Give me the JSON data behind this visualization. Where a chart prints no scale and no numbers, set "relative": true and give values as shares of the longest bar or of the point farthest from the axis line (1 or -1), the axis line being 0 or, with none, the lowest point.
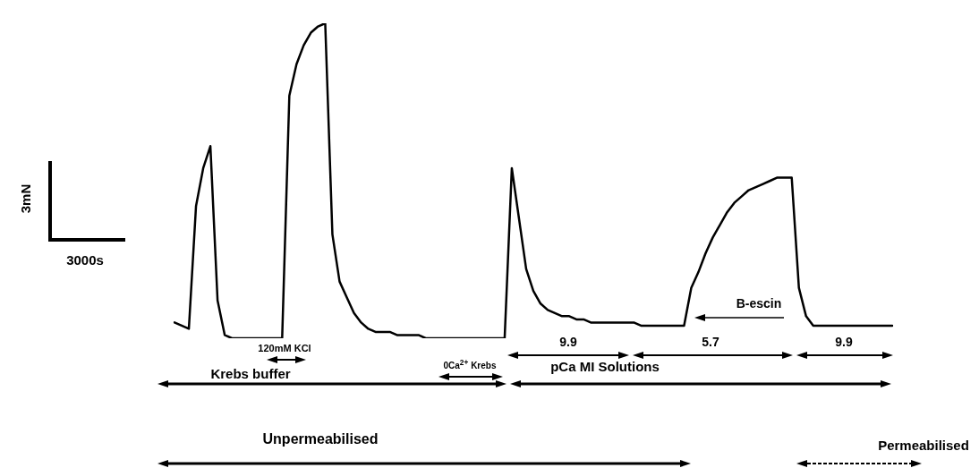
{
  "chart_data": {
    "type": "line",
    "relative": true,
    "marker": "none",
    "grid": false,
    "legend": false,
    "categories": [
      null,
      null,
      null,
      null,
      null,
      null,
      null,
      null,
      null,
      null,
      null,
      null,
      null,
      null,
      null,
      null,
      null,
      null,
      null,
      null,
      null,
      null,
      null,
      null,
      null,
      null,
      null,
      null,
      null,
      null,
      null,
      null,
      null,
      null,
      null,
      null,
      null,
      null,
      null,
      null,
      null,
      null,
      null,
      null,
      null,
      null,
      null,
      null,
      null,
      null,
      null,
      null,
      null,
      null,
      null,
      null,
      null,
      null,
      null,
      null,
      null,
      null,
      null,
      null,
      null,
      null,
      null,
      null,
      null,
      null,
      null,
      null,
      null,
      null,
      null,
      null,
      null,
      null,
      null,
      null,
      null,
      null,
      null,
      null,
      null,
      null,
      null,
      null,
      null,
      null,
      null,
      null,
      null,
      null,
      null,
      null,
      null,
      null,
      null,
      null,
      null
    ],
    "series": [
      {
        "color": "#000000",
        "values": [
          0.05,
          0.04,
          0.03,
          0.42,
          0.54,
          0.61,
          0.12,
          0.01,
          0,
          0,
          0,
          0,
          0,
          0,
          0,
          0,
          0.77,
          0.87,
          0.93,
          0.97,
          0.99,
          1,
          0.33,
          0.18,
          0.13,
          0.08,
          0.05,
          0.03,
          0.02,
          0.02,
          0.02,
          0.01,
          0.01,
          0.01,
          0.01,
          0,
          0,
          0,
          0,
          0,
          0,
          0,
          0,
          0,
          0,
          0,
          0,
          0.54,
          0.38,
          0.22,
          0.15,
          0.11,
          0.09,
          0.08,
          0.07,
          0.07,
          0.06,
          0.06,
          0.05,
          0.05,
          0.05,
          0.05,
          0.05,
          0.05,
          0.05,
          0.04,
          0.04,
          0.04,
          0.04,
          0.04,
          0.04,
          0.04,
          0.16,
          0.21,
          0.27,
          0.32,
          0.36,
          0.4,
          0.43,
          0.45,
          0.47,
          0.48,
          0.49,
          0.5,
          0.51,
          0.51,
          0.51,
          0.16,
          0.07,
          0.04,
          0.04,
          0.04,
          0.04,
          0.04,
          0.04,
          0.04,
          0.04,
          0.04,
          0.04,
          0.04,
          0.04
        ]
      }
    ],
    "annotations": [
      "3mN",
      "3000s",
      "120mM KCl",
      "0Ca$^{2+}$ Krebs",
      "Krebs buffer",
      "pCa MI Solutions",
      "9.9",
      "5.7",
      "9.9",
      "B-escin",
      "Unpermeabilised",
      "Permeabilised"
    ]
  }
}
